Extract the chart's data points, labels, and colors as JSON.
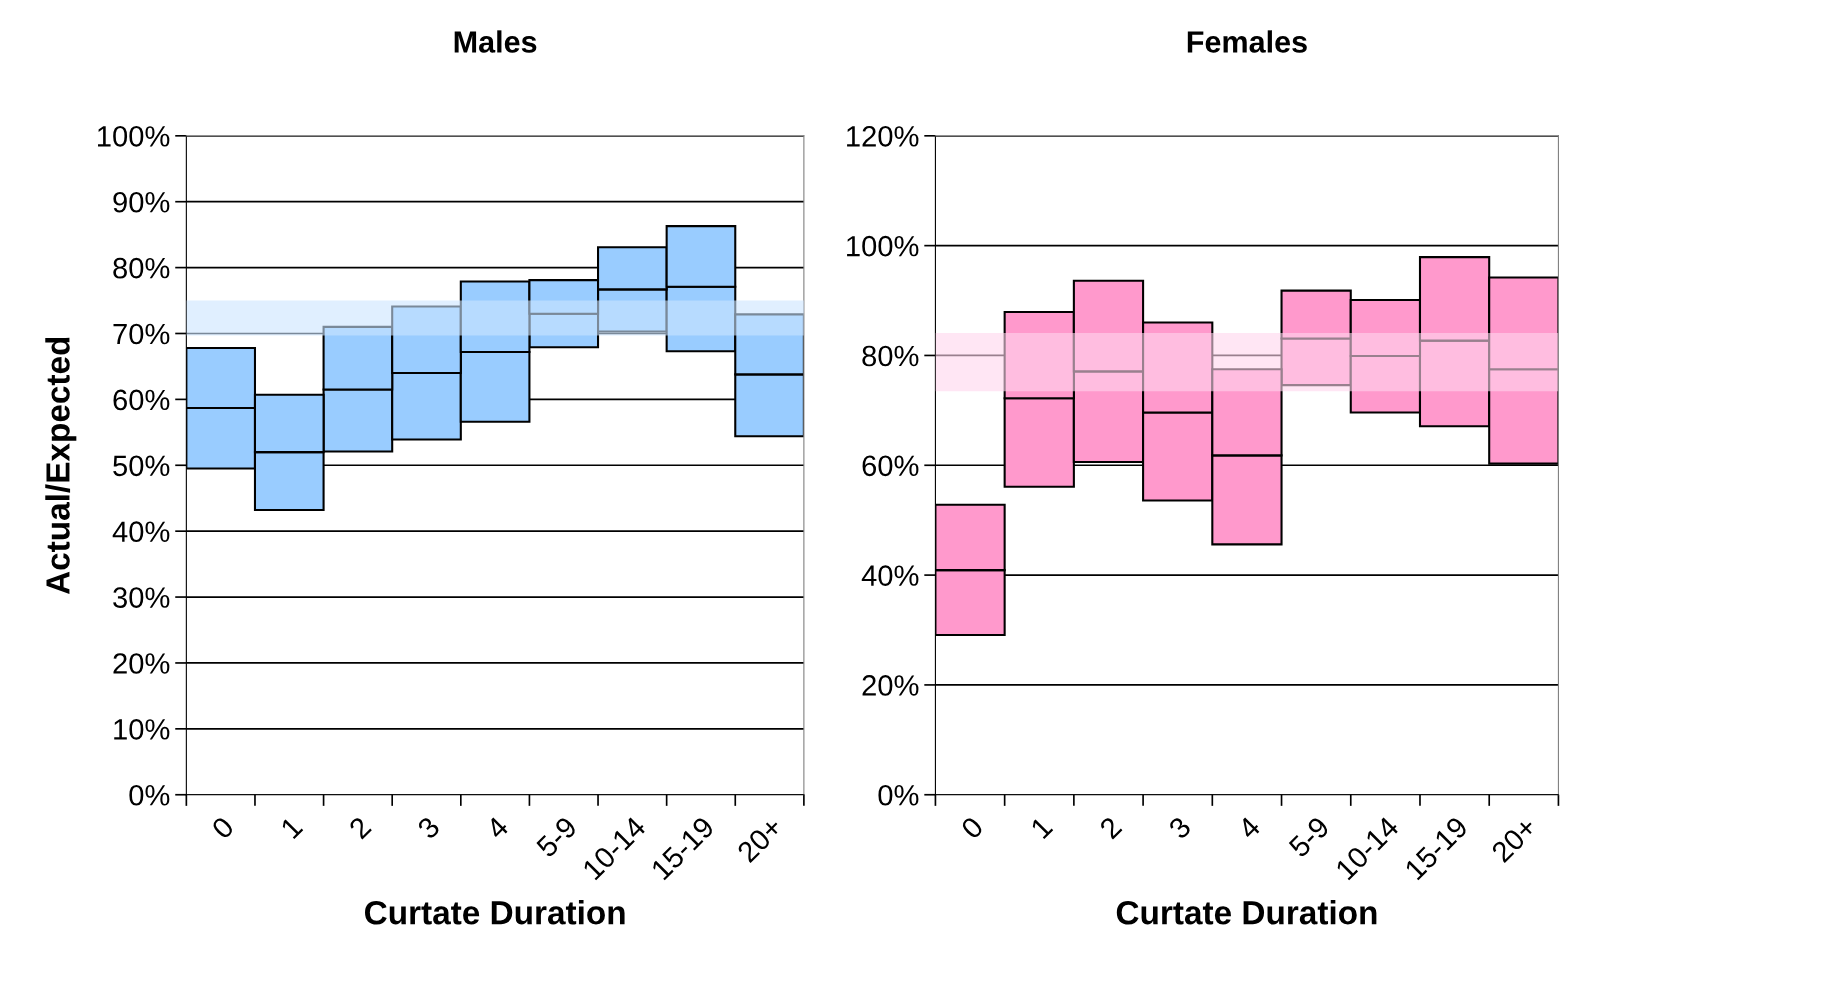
{
  "chart_data": [
    {
      "type": "bar",
      "title": "Males",
      "xlabel": "Curtate Duration",
      "ylabel": "Actual/Expected",
      "categories": [
        "0",
        "1",
        "2",
        "3",
        "4",
        "5-9",
        "10-14",
        "15-19",
        "20+"
      ],
      "grid": "y",
      "series": [
        {
          "color": "#99ccff",
          "base": [
            49.5,
            43.2,
            52.1,
            53.9,
            56.6,
            67.9,
            70.3,
            67.3,
            54.4
          ],
          "values": [
            9.2,
            8.8,
            9.4,
            10.1,
            10.6,
            5.1,
            6.4,
            9.8,
            9.4
          ]
        },
        {
          "color": "#99ccff",
          "base": [
            58.7,
            52.0,
            61.5,
            64.0,
            67.2,
            73.0,
            76.7,
            77.1,
            63.8
          ],
          "values": [
            9.1,
            8.7,
            9.5,
            10.1,
            10.7,
            5.1,
            6.4,
            9.2,
            9.1
          ]
        }
      ],
      "bands": [
        {
          "axis": "y",
          "from": 69.7,
          "to": 75.0,
          "color": "#cce5ff"
        }
      ],
      "ylim": [
        0,
        100
      ],
      "yticks": [
        {
          "value": 0,
          "label": "0%"
        },
        {
          "value": 10,
          "label": "10%"
        },
        {
          "value": 20,
          "label": "20%"
        },
        {
          "value": 30,
          "label": "30%"
        },
        {
          "value": 40,
          "label": "40%"
        },
        {
          "value": 50,
          "label": "50%"
        },
        {
          "value": 60,
          "label": "60%"
        },
        {
          "value": 70,
          "label": "70%"
        },
        {
          "value": 80,
          "label": "80%"
        },
        {
          "value": 90,
          "label": "90%"
        },
        {
          "value": 100,
          "label": "100%"
        }
      ]
    },
    {
      "type": "bar",
      "title": "Females",
      "xlabel": "Curtate Duration",
      "categories": [
        "0",
        "1",
        "2",
        "3",
        "4",
        "5-9",
        "10-14",
        "15-19",
        "20+"
      ],
      "grid": "y",
      "series": [
        {
          "color": "#ff99cc",
          "base": [
            29.1,
            56.1,
            60.6,
            53.6,
            45.6,
            74.6,
            69.6,
            67.1,
            60.3
          ],
          "values": [
            11.8,
            16.1,
            16.5,
            16.0,
            16.2,
            8.5,
            10.3,
            15.6,
            17.2
          ]
        },
        {
          "color": "#ff99cc",
          "base": [
            40.9,
            72.2,
            77.1,
            69.6,
            61.8,
            83.1,
            79.9,
            82.7,
            77.5
          ],
          "values": [
            11.9,
            15.7,
            16.5,
            16.4,
            15.7,
            8.7,
            10.2,
            15.2,
            16.7
          ]
        }
      ],
      "bands": [
        {
          "axis": "y",
          "from": 73.5,
          "to": 84.1,
          "color": "#ffd6ec"
        }
      ],
      "ylim": [
        0,
        120
      ],
      "yticks": [
        {
          "value": 0,
          "label": "0%"
        },
        {
          "value": 20,
          "label": "20%"
        },
        {
          "value": 40,
          "label": "40%"
        },
        {
          "value": 60,
          "label": "60%"
        },
        {
          "value": 80,
          "label": "80%"
        },
        {
          "value": 100,
          "label": "100%"
        },
        {
          "value": 120,
          "label": "120%"
        }
      ]
    }
  ]
}
